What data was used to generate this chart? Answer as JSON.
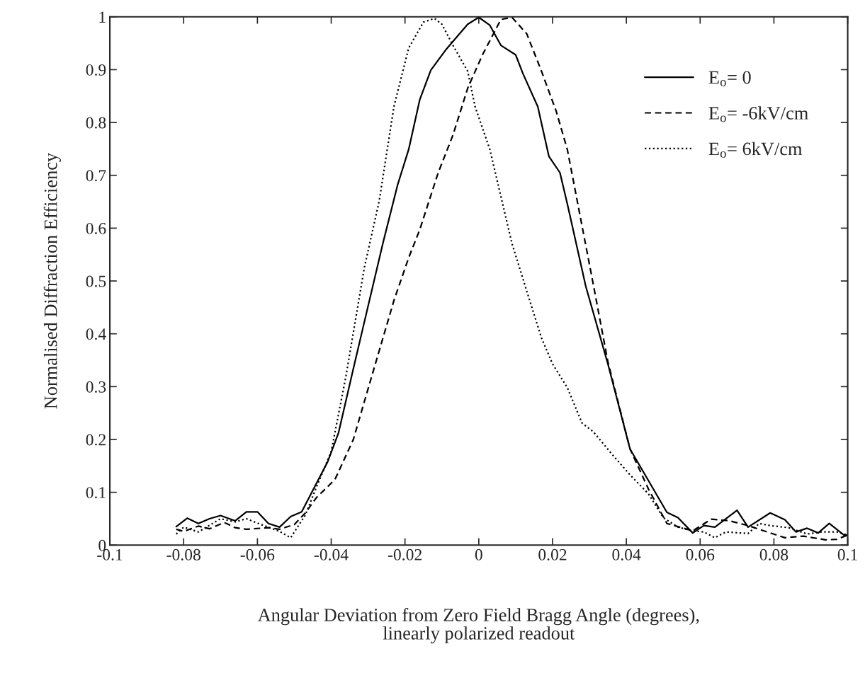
{
  "chart_data": {
    "type": "line",
    "xlabel": "Angular Deviation from Zero Field Bragg Angle (degrees),\nlinearly polarized readout",
    "ylabel": "Normalised Diffraction Efficiency",
    "xlim": [
      -0.1,
      0.1
    ],
    "xticks": [
      -0.1,
      -0.08,
      -0.06,
      -0.04,
      -0.02,
      0,
      0.02,
      0.04,
      0.06,
      0.08,
      0.1
    ],
    "ylim": [
      0,
      1
    ],
    "yticks": [
      0,
      0.1,
      0.2,
      0.3,
      0.4,
      0.5,
      0.6,
      0.7,
      0.8,
      0.9,
      1
    ],
    "grid": false,
    "legend": "top right",
    "marker": "none",
    "series": [
      {
        "name": "E$_{o}$= 0",
        "color": "#000000",
        "line_style": "solid",
        "x": [
          -0.082,
          -0.079,
          -0.076,
          -0.073,
          -0.07,
          -0.066,
          -0.063,
          -0.06,
          -0.057,
          -0.054,
          -0.051,
          -0.048,
          -0.044,
          -0.041,
          -0.038,
          -0.034,
          -0.026,
          -0.022,
          -0.019,
          -0.016,
          -0.013,
          -0.009,
          -0.003,
          0,
          0.003,
          0.006,
          0.01,
          0.012,
          0.016,
          0.019,
          0.022,
          0.024,
          0.029,
          0.035,
          0.041,
          0.051,
          0.054,
          0.058,
          0.061,
          0.064,
          0.07,
          0.073,
          0.079,
          0.083,
          0.086,
          0.089,
          0.092,
          0.095,
          0.099,
          0.1
        ],
        "values": [
          0.035,
          0.051,
          0.041,
          0.05,
          0.056,
          0.046,
          0.063,
          0.063,
          0.041,
          0.034,
          0.054,
          0.063,
          0.117,
          0.157,
          0.213,
          0.334,
          0.571,
          0.682,
          0.749,
          0.843,
          0.899,
          0.937,
          0.986,
          0.999,
          0.984,
          0.946,
          0.928,
          0.892,
          0.83,
          0.736,
          0.705,
          0.646,
          0.49,
          0.343,
          0.182,
          0.062,
          0.052,
          0.023,
          0.037,
          0.034,
          0.066,
          0.034,
          0.061,
          0.048,
          0.025,
          0.032,
          0.023,
          0.041,
          0.019,
          0.019
        ]
      },
      {
        "name": "E$_{o}$= -6kV/cm",
        "color": "#000000",
        "line_style": "dashed",
        "x": [
          -0.082,
          -0.08,
          -0.076,
          -0.073,
          -0.069,
          -0.066,
          -0.063,
          -0.057,
          -0.054,
          -0.05,
          -0.047,
          -0.044,
          -0.039,
          -0.034,
          -0.029,
          -0.023,
          -0.019,
          -0.016,
          -0.011,
          -0.007,
          -0.003,
          0.001,
          0.006,
          0.009,
          0.013,
          0.017,
          0.021,
          0.024,
          0.031,
          0.035,
          0.041,
          0.046,
          0.051,
          0.058,
          0.063,
          0.068,
          0.073,
          0.079,
          0.083,
          0.088,
          0.094,
          0.097,
          0.1
        ],
        "values": [
          0.03,
          0.026,
          0.036,
          0.031,
          0.043,
          0.033,
          0.03,
          0.033,
          0.03,
          0.039,
          0.061,
          0.09,
          0.124,
          0.2,
          0.32,
          0.463,
          0.544,
          0.597,
          0.705,
          0.776,
          0.865,
          0.928,
          0.995,
          0.999,
          0.968,
          0.897,
          0.821,
          0.749,
          0.495,
          0.347,
          0.182,
          0.106,
          0.041,
          0.027,
          0.049,
          0.046,
          0.037,
          0.023,
          0.014,
          0.017,
          0.01,
          0.011,
          0.019
        ]
      },
      {
        "name": "E$_{o}$= 6kV/cm",
        "color": "#000000",
        "line_style": "dotted",
        "x": [
          -0.082,
          -0.08,
          -0.076,
          -0.07,
          -0.066,
          -0.063,
          -0.059,
          -0.054,
          -0.051,
          -0.047,
          -0.044,
          -0.04,
          -0.036,
          -0.031,
          -0.027,
          -0.023,
          -0.019,
          -0.015,
          -0.012,
          -0.01,
          -0.007,
          -0.003,
          -0.001,
          0.003,
          0.006,
          0.009,
          0.013,
          0.017,
          0.02,
          0.024,
          0.028,
          0.031,
          0.036,
          0.041,
          0.046,
          0.05,
          0.054,
          0.058,
          0.061,
          0.064,
          0.067,
          0.073,
          0.076,
          0.079,
          0.084,
          0.089,
          0.093,
          0.097,
          0.1
        ],
        "values": [
          0.021,
          0.034,
          0.025,
          0.05,
          0.044,
          0.05,
          0.039,
          0.026,
          0.014,
          0.057,
          0.11,
          0.177,
          0.32,
          0.526,
          0.651,
          0.83,
          0.941,
          0.99,
          0.997,
          0.986,
          0.946,
          0.897,
          0.83,
          0.749,
          0.66,
          0.571,
          0.481,
          0.392,
          0.343,
          0.298,
          0.231,
          0.215,
          0.173,
          0.133,
          0.097,
          0.052,
          0.034,
          0.027,
          0.025,
          0.014,
          0.025,
          0.022,
          0.041,
          0.037,
          0.033,
          0.021,
          0.025,
          0.025,
          0.019
        ]
      }
    ]
  }
}
